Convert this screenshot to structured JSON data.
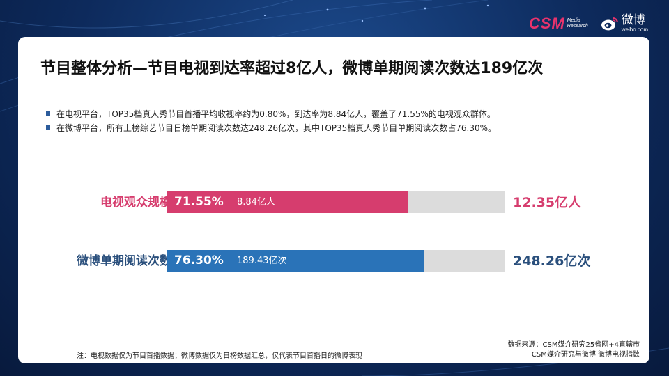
{
  "header": {
    "csm_logo_text": "CSM",
    "csm_logo_sub1": "Media",
    "csm_logo_sub2": "Research",
    "weibo_logo_cn": "微博",
    "weibo_logo_en": "weibo.com"
  },
  "title": "节目整体分析—节目电视到达率超过8亿人，微博单期阅读次数达189亿次",
  "bullets": [
    "在电视平台，TOP35档真人秀节目首播平均收视率约为0.80%，到达率为8.84亿人，覆盖了71.55%的电视观众群体。",
    "在微博平台，所有上榜综艺节目日榜单期阅读次数达248.26亿次，其中TOP35档真人秀节目单期阅读次数占76.30%。"
  ],
  "chart_data": {
    "type": "bar",
    "orientation": "horizontal",
    "categories": [
      "电视观众规模",
      "微博单期阅读次数"
    ],
    "values": [
      71.55,
      76.3
    ],
    "value_labels": [
      "71.55%",
      "76.30%"
    ],
    "part_labels": [
      "8.84亿人",
      "189.43亿次"
    ],
    "total_labels": [
      "12.35亿人",
      "248.26亿次"
    ],
    "xlim": [
      0,
      100
    ],
    "colors": [
      "#d63d6e",
      "#2a73b8"
    ],
    "track_color": "#dcdcdc",
    "label_colors": [
      "#d63d6e",
      "#2a4f7c"
    ]
  },
  "note": "注：电视数据仅为节目首播数据；微博数据仅为日榜数据汇总，仅代表节目首播日的微博表现",
  "source_line1": "数据来源：CSM媒介研究25省网+4直辖市",
  "source_line2": "CSM媒介研究与微博 微博电视指数"
}
